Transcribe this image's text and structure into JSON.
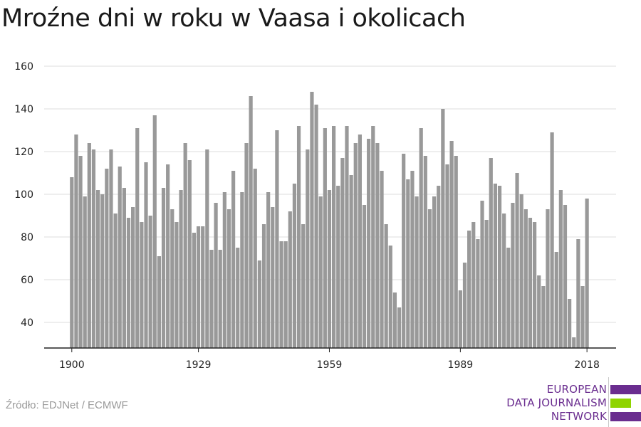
{
  "title": "Mroźne dni w roku w Vaasa i okolicach",
  "source": "Źródło: EDJNet / ECMWF",
  "logo": {
    "line1": "EUROPEAN",
    "line2": "DATA JOURNALISM",
    "line3": "NETWORK"
  },
  "colors": {
    "bar": "#999999",
    "grid": "#dddddd",
    "axis": "#222222",
    "logo_purple": "#6a2d8f",
    "logo_green": "#8fd400",
    "source": "#9a9a9a"
  },
  "chart_data": {
    "type": "bar",
    "title": "Mroźne dni w roku w Vaasa i okolicach",
    "xlabel": "",
    "ylabel": "",
    "ylim": [
      28,
      163
    ],
    "yticks": [
      40,
      60,
      80,
      100,
      120,
      140,
      160
    ],
    "xticks": [
      1900,
      1929,
      1959,
      1989,
      2018
    ],
    "grid": true,
    "x": [
      1900,
      1901,
      1902,
      1903,
      1904,
      1905,
      1906,
      1907,
      1908,
      1909,
      1910,
      1911,
      1912,
      1913,
      1914,
      1915,
      1916,
      1917,
      1918,
      1919,
      1920,
      1921,
      1922,
      1923,
      1924,
      1925,
      1926,
      1927,
      1928,
      1929,
      1930,
      1931,
      1932,
      1933,
      1934,
      1935,
      1936,
      1937,
      1938,
      1939,
      1940,
      1941,
      1942,
      1943,
      1944,
      1945,
      1946,
      1947,
      1948,
      1949,
      1950,
      1951,
      1952,
      1953,
      1954,
      1955,
      1956,
      1957,
      1958,
      1959,
      1960,
      1961,
      1962,
      1963,
      1964,
      1965,
      1966,
      1967,
      1968,
      1969,
      1970,
      1971,
      1972,
      1973,
      1974,
      1975,
      1976,
      1977,
      1978,
      1979,
      1980,
      1981,
      1982,
      1983,
      1984,
      1985,
      1986,
      1987,
      1988,
      1989,
      1990,
      1991,
      1992,
      1993,
      1994,
      1995,
      1996,
      1997,
      1998,
      1999,
      2000,
      2001,
      2002,
      2003,
      2004,
      2005,
      2006,
      2007,
      2008,
      2009,
      2010,
      2011,
      2012,
      2013,
      2014,
      2015,
      2016,
      2017,
      2018
    ],
    "values": [
      108,
      128,
      118,
      99,
      124,
      121,
      102,
      100,
      112,
      121,
      91,
      113,
      103,
      89,
      94,
      131,
      87,
      115,
      90,
      137,
      71,
      103,
      114,
      93,
      87,
      102,
      124,
      116,
      82,
      85,
      85,
      121,
      74,
      96,
      74,
      101,
      93,
      111,
      75,
      101,
      124,
      146,
      112,
      69,
      86,
      101,
      94,
      130,
      78,
      78,
      92,
      105,
      132,
      86,
      121,
      148,
      142,
      99,
      131,
      102,
      132,
      104,
      117,
      132,
      109,
      124,
      128,
      95,
      126,
      132,
      124,
      111,
      86,
      76,
      54,
      47,
      119,
      107,
      111,
      99,
      131,
      118,
      93,
      99,
      104,
      140,
      114,
      125,
      118,
      55,
      68,
      83,
      87,
      79,
      97,
      88,
      117,
      105,
      104,
      91,
      75,
      96,
      110,
      100,
      93,
      89,
      87,
      62,
      57,
      93,
      129,
      73,
      102,
      95,
      51,
      33,
      79,
      57,
      98
    ]
  }
}
